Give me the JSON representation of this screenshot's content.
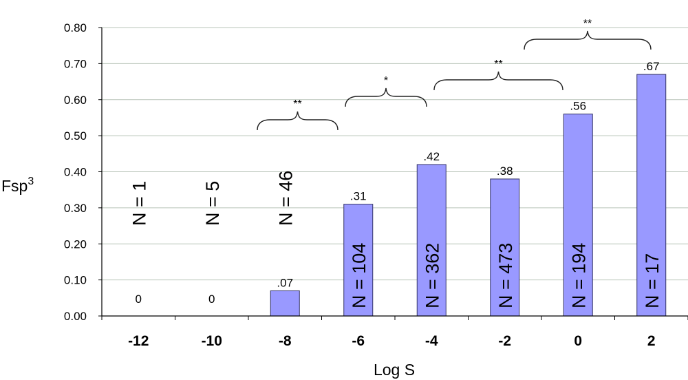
{
  "chart_data": {
    "type": "bar",
    "categories": [
      "-12",
      "-10",
      "-8",
      "-6",
      "-4",
      "-2",
      "0",
      "2"
    ],
    "values": [
      0,
      0,
      0.07,
      0.31,
      0.42,
      0.38,
      0.56,
      0.67
    ],
    "data_labels": [
      "0",
      "0",
      ".07",
      ".31",
      ".42",
      ".38",
      ".56",
      ".67"
    ],
    "n_labels": [
      "N = 1",
      "N = 5",
      "N = 46",
      "N = 104",
      "N = 362",
      "N = 473",
      "N = 194",
      "N = 17"
    ],
    "xlabel": "Log S",
    "ylabel_main": "Fsp",
    "ylabel_sup": "3",
    "ylim": [
      0,
      0.8
    ],
    "yticks": [
      "0.00",
      "0.10",
      "0.20",
      "0.30",
      "0.40",
      "0.50",
      "0.60",
      "0.70",
      "0.80"
    ],
    "grid": true,
    "bar_color": "#9999ff",
    "significance": [
      {
        "label": "**",
        "from_category": "-8",
        "to_category": "-6"
      },
      {
        "label": "*",
        "from_category": "-6",
        "to_category": "-4"
      },
      {
        "label": "**",
        "from_category": "-4",
        "to_category": "0"
      },
      {
        "label": "**",
        "from_category": "-2",
        "to_category": "2"
      }
    ]
  }
}
